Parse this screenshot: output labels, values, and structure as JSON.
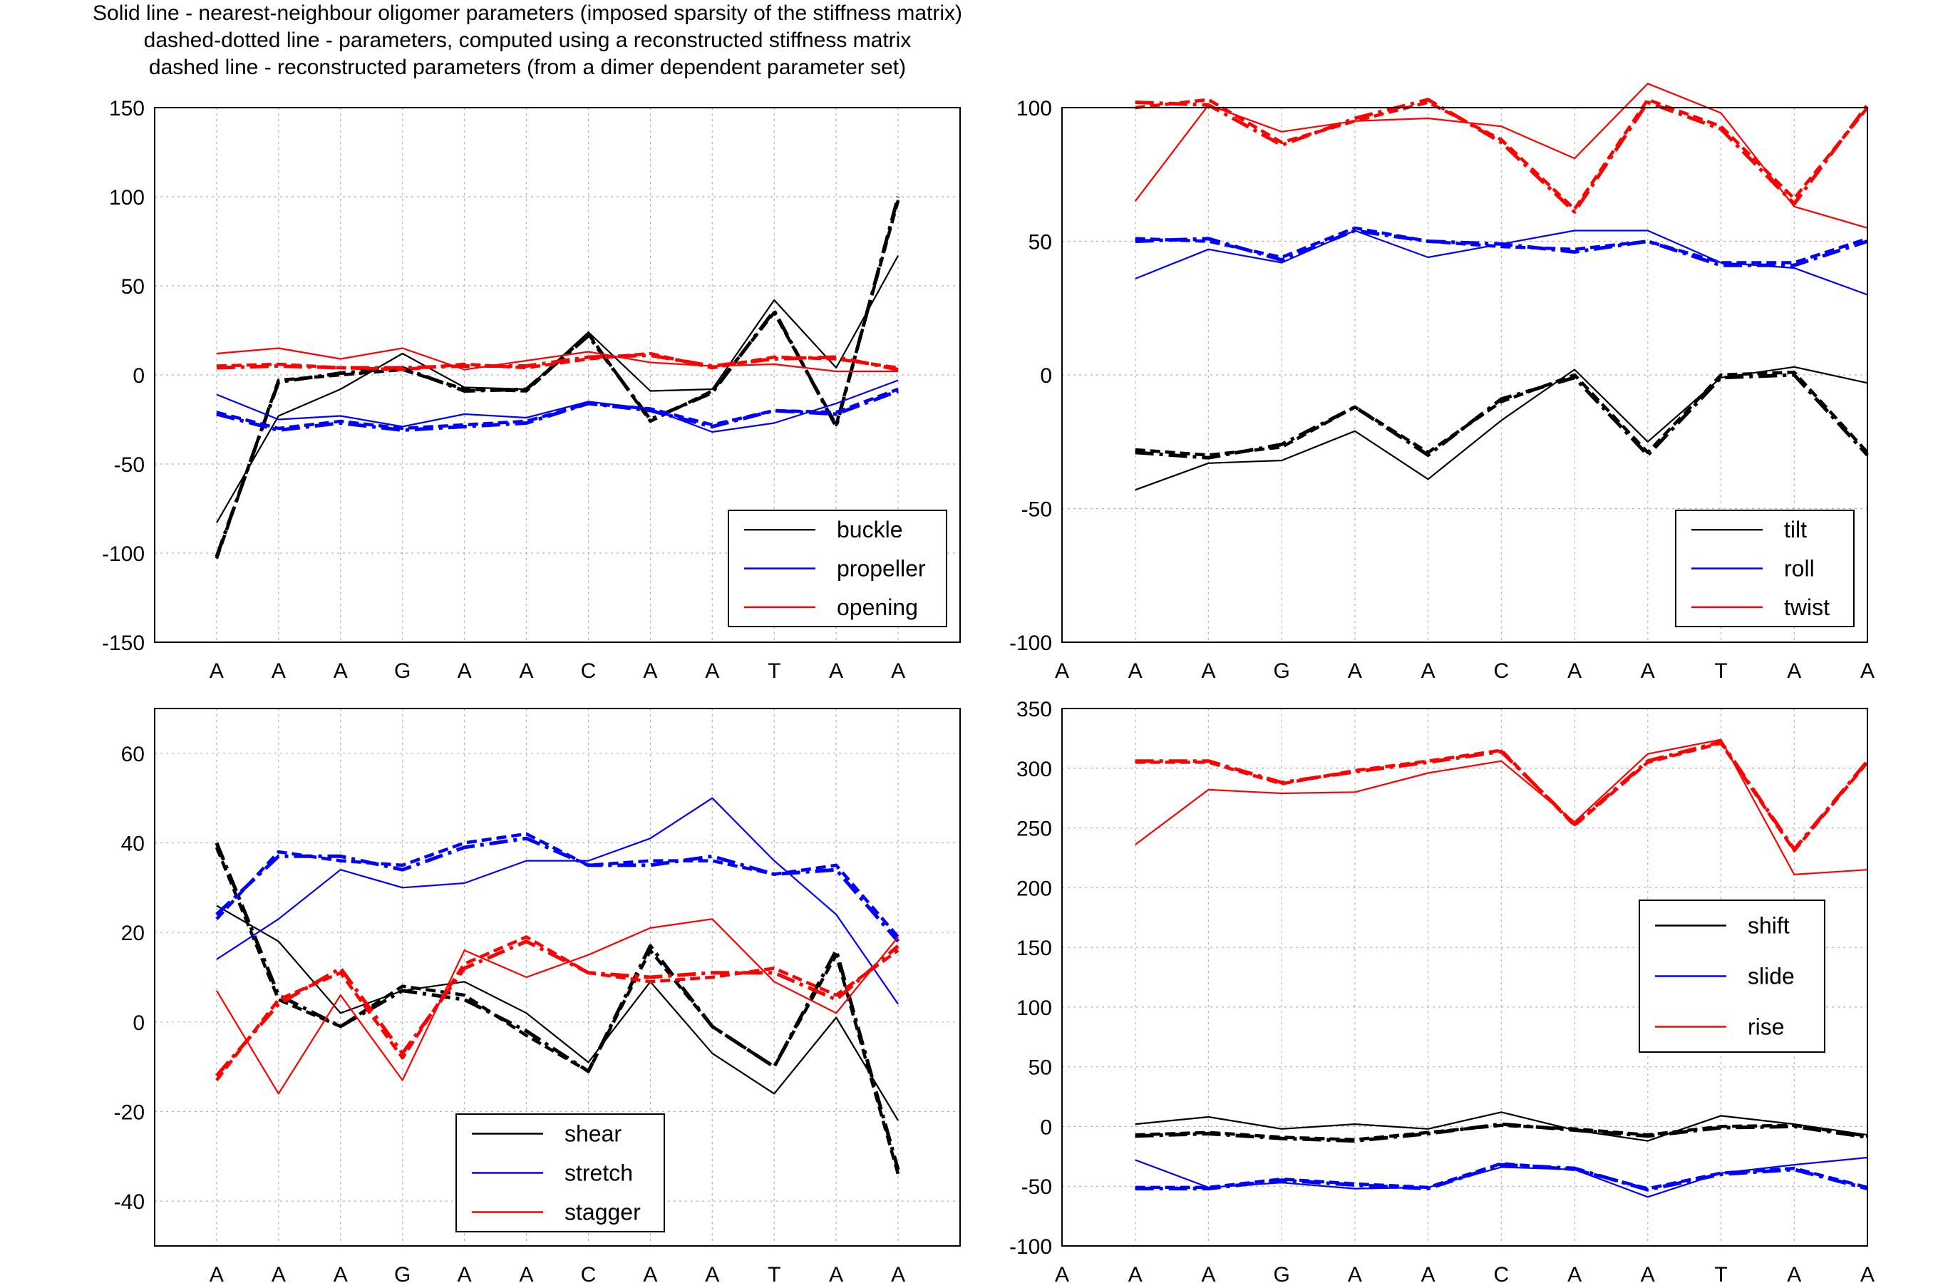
{
  "figure": {
    "title_lines": [
      "Solid line - nearest-neighbour oligomer parameters (imposed sparsity of the stiffness matrix)",
      "dashed-dotted line - parameters, computed using a reconstructed stiffness matrix",
      "dashed line - reconstructed parameters (from a dimer dependent parameter set)"
    ]
  },
  "colors": {
    "black": "#000000",
    "blue": "#0000ff",
    "red": "#ff0000",
    "grid": "#b0b0b0"
  },
  "chart_data": [
    {
      "type": "line",
      "categories": [
        "A",
        "A",
        "A",
        "G",
        "A",
        "A",
        "C",
        "A",
        "A",
        "T",
        "A",
        "A"
      ],
      "ylim": [
        -150,
        150
      ],
      "yticks": [
        -150,
        -100,
        -50,
        0,
        50,
        100,
        150
      ],
      "grid": true,
      "legend_position": "bottom-right",
      "series": [
        {
          "name": "buckle",
          "color": "black",
          "solid": [
            -83,
            -23,
            -8,
            12,
            -7,
            -8,
            24,
            -9,
            -8,
            42,
            4,
            67
          ],
          "dashdot": [
            -102,
            -4,
            1,
            4,
            -9,
            -8,
            22,
            -25,
            -10,
            36,
            -29,
            100
          ],
          "dashed": [
            -103,
            -3,
            0,
            3,
            -8,
            -9,
            23,
            -26,
            -9,
            35,
            -28,
            98
          ]
        },
        {
          "name": "propeller",
          "color": "blue",
          "solid": [
            -11,
            -25,
            -23,
            -29,
            -22,
            -24,
            -15,
            -19,
            -32,
            -27,
            -16,
            -3
          ],
          "dashdot": [
            -22,
            -31,
            -27,
            -31,
            -29,
            -27,
            -16,
            -20,
            -29,
            -20,
            -22,
            -9
          ],
          "dashed": [
            -21,
            -30,
            -26,
            -30,
            -28,
            -26,
            -16,
            -19,
            -28,
            -20,
            -21,
            -8
          ]
        },
        {
          "name": "opening",
          "color": "red",
          "solid": [
            12,
            15,
            9,
            15,
            3,
            8,
            13,
            7,
            5,
            6,
            2,
            2
          ],
          "dashdot": [
            4,
            5,
            4,
            4,
            5,
            5,
            10,
            11,
            5,
            9,
            10,
            3
          ],
          "dashed": [
            5,
            6,
            4,
            3,
            6,
            4,
            9,
            12,
            4,
            10,
            9,
            4
          ]
        }
      ]
    },
    {
      "type": "line",
      "categories": [
        "A",
        "A",
        "A",
        "G",
        "A",
        "A",
        "C",
        "A",
        "A",
        "T",
        "A",
        "A"
      ],
      "ylim": [
        -100,
        100
      ],
      "yticks": [
        -100,
        -50,
        0,
        50,
        100
      ],
      "grid": true,
      "legend_position": "bottom-right",
      "series": [
        {
          "name": "tilt",
          "color": "black",
          "solid": [
            -43,
            -33,
            -32,
            -21,
            -39,
            -17,
            2,
            -25,
            -1,
            3,
            -3
          ],
          "dashdot": [
            -29,
            -31,
            -26,
            -12,
            -30,
            -9,
            -1,
            -30,
            -1,
            0,
            -30
          ],
          "dashed": [
            -28,
            -30,
            -27,
            -12,
            -29,
            -10,
            0,
            -29,
            0,
            1,
            -29
          ]
        },
        {
          "name": "roll",
          "color": "blue",
          "solid": [
            36,
            47,
            42,
            54,
            44,
            49,
            54,
            54,
            42,
            40,
            30
          ],
          "dashdot": [
            50,
            51,
            43,
            54,
            50,
            49,
            46,
            50,
            41,
            41,
            50
          ],
          "dashed": [
            51,
            50,
            44,
            55,
            50,
            48,
            47,
            50,
            42,
            42,
            51
          ]
        },
        {
          "name": "twist",
          "color": "red",
          "solid": [
            65,
            101,
            91,
            95,
            96,
            93,
            81,
            109,
            98,
            63,
            55
          ],
          "dashdot": [
            102,
            101,
            86,
            96,
            103,
            87,
            61,
            102,
            92,
            64,
            101
          ],
          "dashed": [
            100,
            103,
            87,
            95,
            102,
            88,
            62,
            103,
            93,
            66,
            100
          ]
        }
      ]
    },
    {
      "type": "line",
      "categories": [
        "A",
        "A",
        "A",
        "G",
        "A",
        "A",
        "C",
        "A",
        "A",
        "T",
        "A",
        "A"
      ],
      "ylim": [
        -50,
        70
      ],
      "yticks": [
        -40,
        -20,
        0,
        20,
        40,
        60
      ],
      "grid": true,
      "legend_position": "bottom-center",
      "series": [
        {
          "name": "shear",
          "color": "black",
          "solid": [
            26,
            18,
            2,
            7,
            9,
            2,
            -9,
            9,
            -7,
            -16,
            1,
            -22
          ],
          "dashdot": [
            40,
            6,
            -1,
            7,
            5,
            -2,
            -11,
            17,
            -1,
            -10,
            16,
            -33
          ],
          "dashed": [
            39,
            5,
            -1,
            8,
            6,
            -3,
            -11,
            16,
            -1,
            -10,
            15,
            -34
          ]
        },
        {
          "name": "stretch",
          "color": "blue",
          "solid": [
            14,
            23,
            34,
            30,
            31,
            36,
            36,
            41,
            50,
            36,
            24,
            4
          ],
          "dashdot": [
            24,
            37,
            37,
            34,
            39,
            41,
            35,
            35,
            37,
            33,
            34,
            18
          ],
          "dashed": [
            23,
            38,
            36,
            35,
            40,
            42,
            35,
            36,
            36,
            33,
            35,
            19
          ]
        },
        {
          "name": "stagger",
          "color": "red",
          "solid": [
            7,
            -16,
            6,
            -13,
            16,
            10,
            15,
            21,
            23,
            9,
            2,
            19
          ],
          "dashdot": [
            -12,
            4,
            12,
            -7,
            12,
            18,
            11,
            10,
            11,
            11,
            5,
            17
          ],
          "dashed": [
            -13,
            5,
            11,
            -8,
            13,
            19,
            11,
            9,
            10,
            12,
            6,
            16
          ]
        }
      ]
    },
    {
      "type": "line",
      "categories": [
        "A",
        "A",
        "A",
        "G",
        "A",
        "A",
        "C",
        "A",
        "A",
        "T",
        "A",
        "A"
      ],
      "ylim": [
        -100,
        350
      ],
      "yticks": [
        -100,
        -50,
        0,
        50,
        100,
        150,
        200,
        250,
        300,
        350
      ],
      "grid": true,
      "legend_position": "right",
      "series": [
        {
          "name": "shift",
          "color": "black",
          "solid": [
            2,
            8,
            -2,
            2,
            -2,
            12,
            -3,
            -12,
            9,
            2,
            -7
          ],
          "dashdot": [
            -8,
            -6,
            -10,
            -12,
            -6,
            2,
            -3,
            -8,
            -1,
            0,
            -9
          ],
          "dashed": [
            -7,
            -5,
            -9,
            -11,
            -5,
            1,
            -2,
            -7,
            0,
            1,
            -8
          ]
        },
        {
          "name": "slide",
          "color": "blue",
          "solid": [
            -28,
            -51,
            -47,
            -52,
            -51,
            -34,
            -36,
            -59,
            -39,
            -32,
            -26
          ],
          "dashdot": [
            -52,
            -52,
            -45,
            -49,
            -52,
            -32,
            -35,
            -53,
            -40,
            -36,
            -52
          ],
          "dashed": [
            -51,
            -51,
            -44,
            -48,
            -51,
            -31,
            -36,
            -52,
            -39,
            -35,
            -51
          ]
        },
        {
          "name": "rise",
          "color": "red",
          "solid": [
            236,
            282,
            279,
            280,
            296,
            306,
            255,
            312,
            324,
            211,
            215
          ],
          "dashdot": [
            306,
            306,
            288,
            297,
            305,
            314,
            253,
            306,
            322,
            232,
            306
          ],
          "dashed": [
            305,
            305,
            287,
            298,
            306,
            315,
            252,
            305,
            321,
            231,
            305
          ]
        }
      ]
    }
  ]
}
